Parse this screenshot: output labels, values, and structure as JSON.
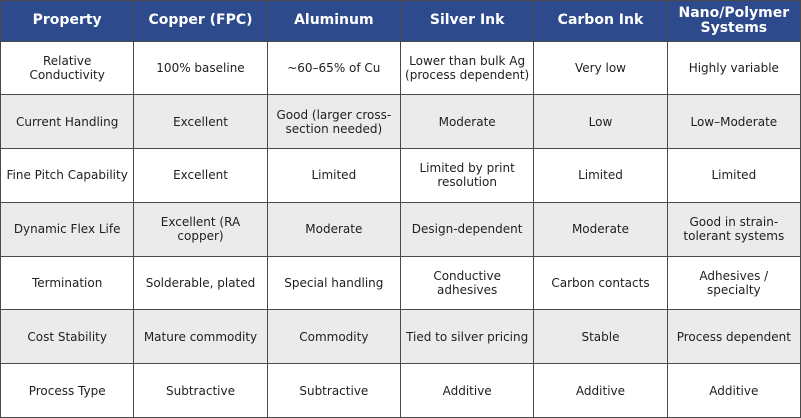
{
  "table": {
    "header": [
      "Property",
      "Copper (FPC)",
      "Aluminum",
      "Silver Ink",
      "Carbon Ink",
      "Nano/Polymer Systems"
    ],
    "rows": [
      [
        "Relative Conductivity",
        "100% baseline",
        "~60–65% of Cu",
        "Lower than bulk Ag (process dependent)",
        "Very low",
        "Highly variable"
      ],
      [
        "Current Handling",
        "Excellent",
        "Good (larger cross-section needed)",
        "Moderate",
        "Low",
        "Low–Moderate"
      ],
      [
        "Fine Pitch Capability",
        "Excellent",
        "Limited",
        "Limited by print resolution",
        "Limited",
        "Limited"
      ],
      [
        "Dynamic Flex Life",
        "Excellent (RA copper)",
        "Moderate",
        "Design-dependent",
        "Moderate",
        "Good in strain-tolerant systems"
      ],
      [
        "Termination",
        "Solderable, plated",
        "Special handling",
        "Conductive adhesives",
        "Carbon contacts",
        "Adhesives / specialty"
      ],
      [
        "Cost Stability",
        "Mature commodity",
        "Commodity",
        "Tied to silver pricing",
        "Stable",
        "Process dependent"
      ],
      [
        "Process Type",
        "Subtractive",
        "Subtractive",
        "Additive",
        "Additive",
        "Additive"
      ]
    ]
  }
}
